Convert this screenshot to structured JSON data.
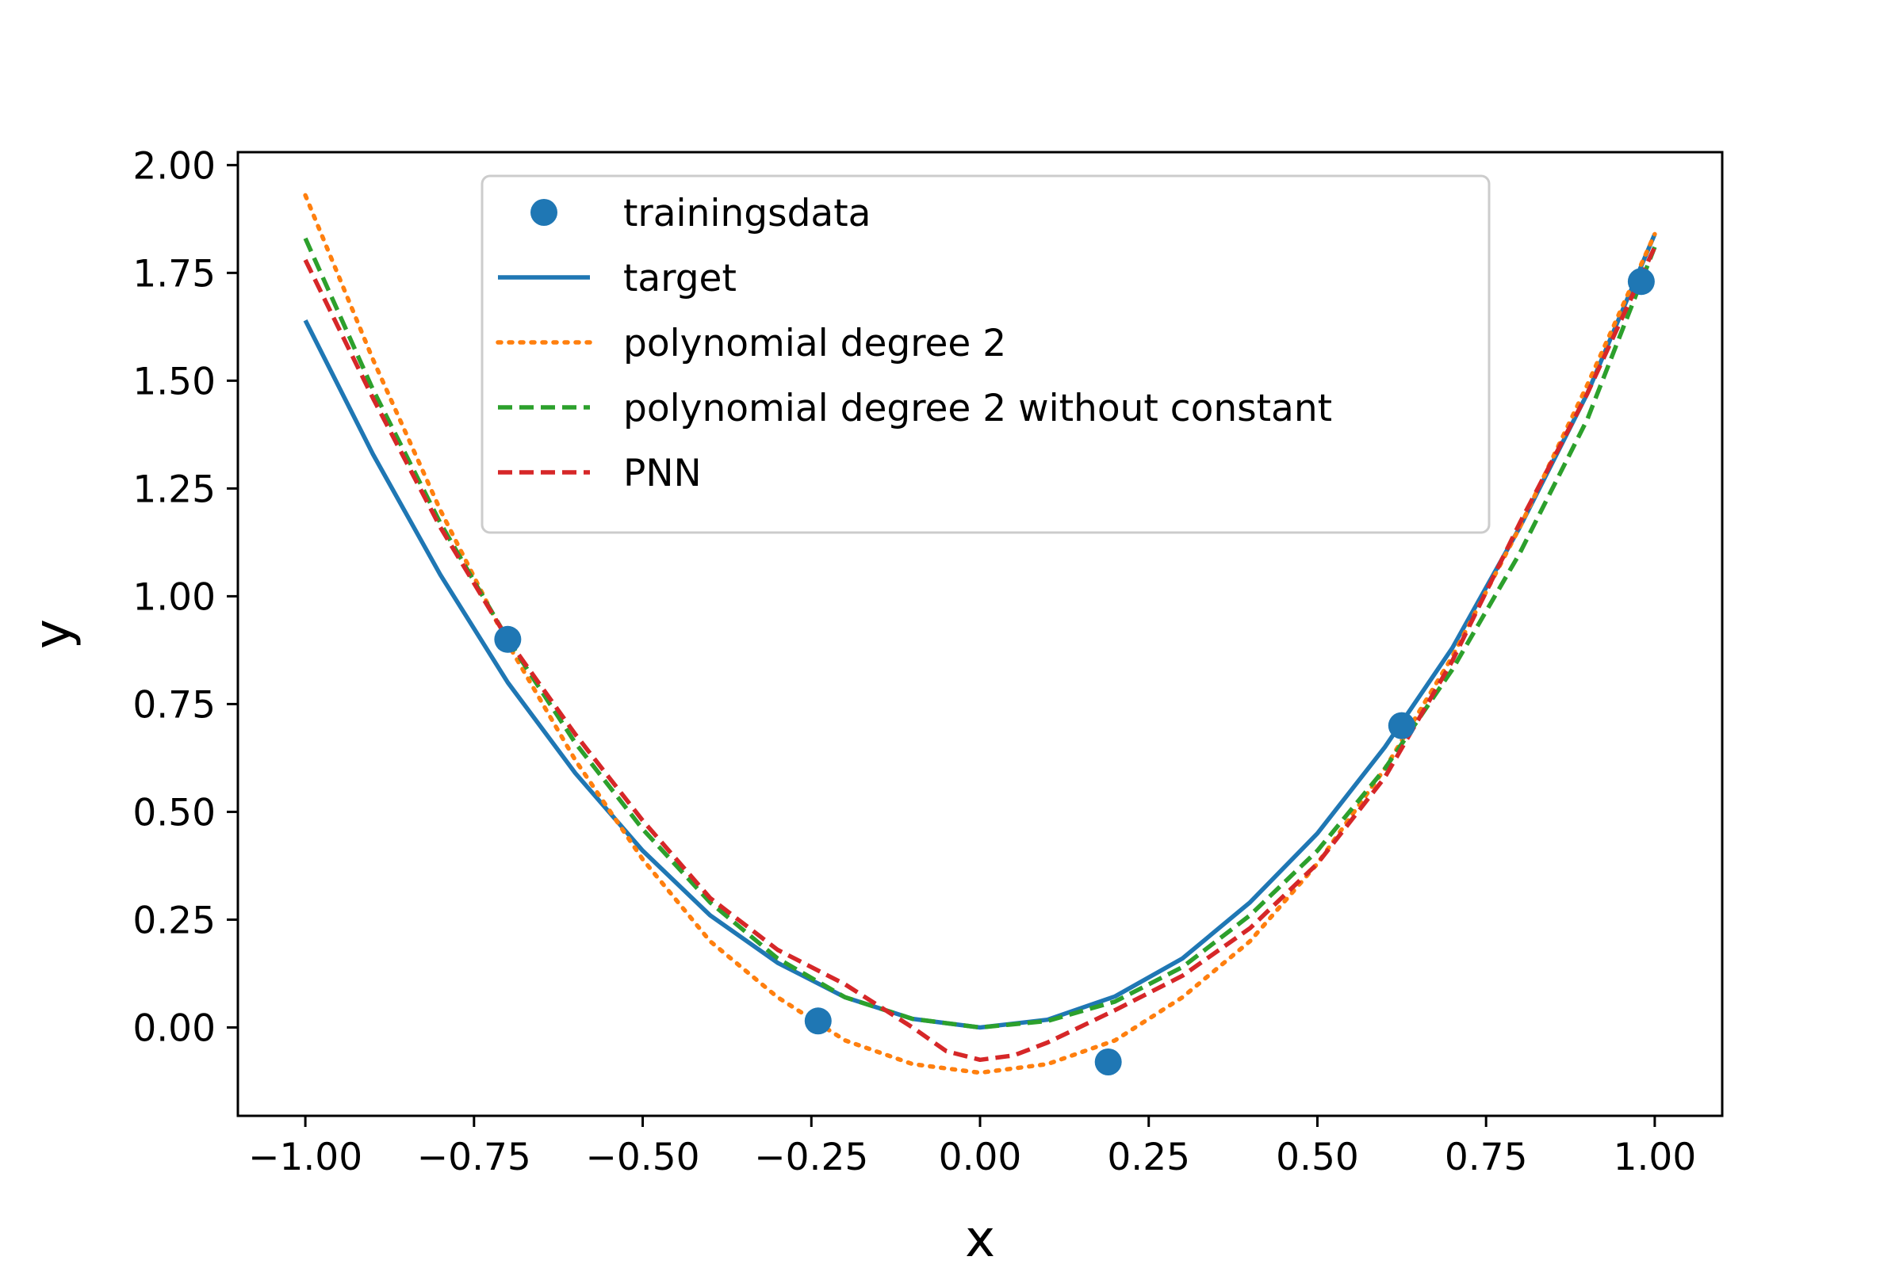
{
  "chart_data": {
    "type": "line",
    "title": "",
    "xlabel": "x",
    "ylabel": "y",
    "xlim": [
      -1.1,
      1.1
    ],
    "ylim": [
      -0.205,
      2.03
    ],
    "xticks": [
      -1.0,
      -0.75,
      -0.5,
      -0.25,
      0.0,
      0.25,
      0.5,
      0.75,
      1.0
    ],
    "xtick_labels": [
      "−1.00",
      "−0.75",
      "−0.50",
      "−0.25",
      "0.00",
      "0.25",
      "0.50",
      "0.75",
      "1.00"
    ],
    "yticks": [
      0.0,
      0.25,
      0.5,
      0.75,
      1.0,
      1.25,
      1.5,
      1.75,
      2.0
    ],
    "ytick_labels": [
      "0.00",
      "0.25",
      "0.50",
      "0.75",
      "1.00",
      "1.25",
      "1.50",
      "1.75",
      "2.00"
    ],
    "grid": false,
    "legend_position": "upper-center",
    "series": [
      {
        "name": "trainingsdata",
        "kind": "scatter",
        "color": "#1f77b4",
        "x": [
          -0.7,
          -0.24,
          0.19,
          0.625,
          0.98
        ],
        "y": [
          0.9,
          0.015,
          -0.08,
          0.7,
          1.73
        ]
      },
      {
        "name": "target",
        "kind": "line",
        "style": "solid",
        "color": "#1f77b4",
        "x": [
          -1.0,
          -0.9,
          -0.8,
          -0.7,
          -0.6,
          -0.5,
          -0.4,
          -0.3,
          -0.2,
          -0.1,
          0.0,
          0.1,
          0.2,
          0.3,
          0.4,
          0.5,
          0.6,
          0.7,
          0.8,
          0.9,
          1.0
        ],
        "y": [
          1.64,
          1.33,
          1.05,
          0.8,
          0.59,
          0.41,
          0.26,
          0.15,
          0.07,
          0.02,
          0.0,
          0.018,
          0.072,
          0.16,
          0.29,
          0.45,
          0.65,
          0.88,
          1.16,
          1.47,
          1.84
        ]
      },
      {
        "name": "polynomial degree 2",
        "kind": "line",
        "style": "dotted",
        "color": "#ff7f0e",
        "x": [
          -1.0,
          -0.9,
          -0.8,
          -0.7,
          -0.6,
          -0.5,
          -0.4,
          -0.3,
          -0.2,
          -0.1,
          0.0,
          0.1,
          0.2,
          0.3,
          0.4,
          0.5,
          0.6,
          0.7,
          0.8,
          0.9,
          1.0
        ],
        "y": [
          1.93,
          1.55,
          1.2,
          0.89,
          0.62,
          0.39,
          0.2,
          0.07,
          -0.03,
          -0.085,
          -0.105,
          -0.085,
          -0.03,
          0.07,
          0.2,
          0.38,
          0.6,
          0.86,
          1.16,
          1.49,
          1.84
        ]
      },
      {
        "name": "polynomial degree 2 without constant",
        "kind": "line",
        "style": "dashed",
        "color": "#2ca02c",
        "x": [
          -1.0,
          -0.9,
          -0.8,
          -0.7,
          -0.6,
          -0.5,
          -0.4,
          -0.3,
          -0.2,
          -0.1,
          0.0,
          0.1,
          0.2,
          0.3,
          0.4,
          0.5,
          0.6,
          0.7,
          0.8,
          0.9,
          1.0
        ],
        "y": [
          1.83,
          1.48,
          1.17,
          0.9,
          0.66,
          0.46,
          0.29,
          0.16,
          0.07,
          0.02,
          0.0,
          0.015,
          0.06,
          0.14,
          0.26,
          0.41,
          0.6,
          0.83,
          1.1,
          1.41,
          1.81
        ]
      },
      {
        "name": "PNN",
        "kind": "line",
        "style": "dashed",
        "color": "#d62728",
        "x": [
          -1.0,
          -0.9,
          -0.8,
          -0.7,
          -0.6,
          -0.5,
          -0.4,
          -0.3,
          -0.2,
          -0.1,
          -0.05,
          0.0,
          0.05,
          0.1,
          0.2,
          0.3,
          0.4,
          0.5,
          0.6,
          0.7,
          0.8,
          0.9,
          1.0
        ],
        "y": [
          1.78,
          1.46,
          1.16,
          0.9,
          0.68,
          0.48,
          0.3,
          0.18,
          0.1,
          0.0,
          -0.055,
          -0.075,
          -0.065,
          -0.035,
          0.04,
          0.12,
          0.23,
          0.38,
          0.58,
          0.85,
          1.17,
          1.47,
          1.81
        ]
      }
    ]
  }
}
